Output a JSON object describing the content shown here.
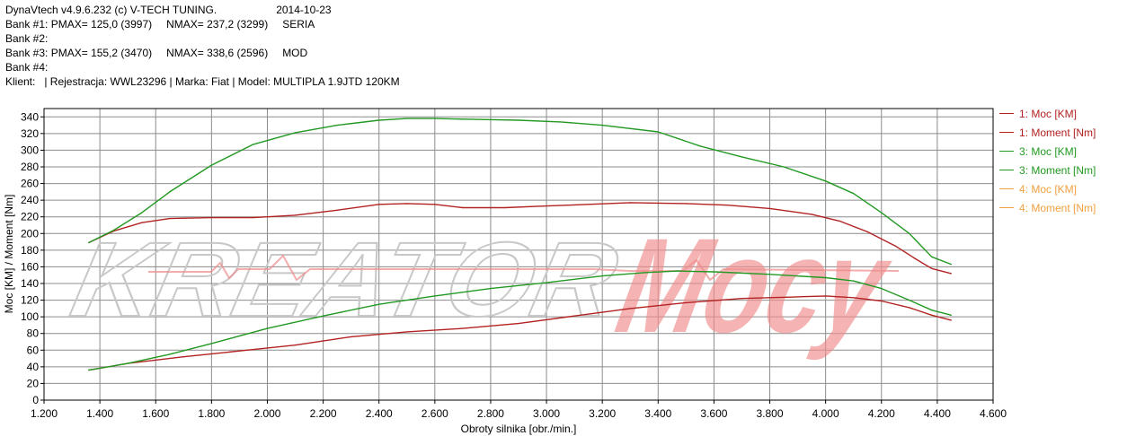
{
  "header": {
    "line1_app": "DynaVtech v4.9.6.232 (c) V-TECH TUNING.",
    "line1_date": "2014-10-23",
    "bank1_label": "Bank #1:",
    "bank1_pmax": "PMAX= 125,0 (3997)",
    "bank1_nmax": "NMAX= 237,2 (3299)",
    "bank1_name": "SERIA",
    "bank2_label": "Bank #2:",
    "bank3_label": "Bank #3:",
    "bank3_pmax": "PMAX= 155,2 (3470)",
    "bank3_nmax": "NMAX= 338,6 (2596)",
    "bank3_name": "MOD",
    "bank4_label": "Bank #4:",
    "client_line": "Klient:   | Rejestracja: WWL23296 | Marka: Fiat | Model: MULTIPLA 1.9JTD 120KM"
  },
  "watermark": {
    "word1": "KREATOR",
    "word2": "Mocy",
    "word1_color": "#c8c8c8",
    "word2_color": "#f08a8a"
  },
  "chart_data": {
    "type": "line",
    "xlabel": "Obroty silnika [obr./min.]",
    "ylabel": "Moc [KM] / Moment [Nm]",
    "xlim": [
      1200,
      4600
    ],
    "ylim": [
      0,
      350
    ],
    "x_ticks": [
      1200,
      1400,
      1600,
      1800,
      2000,
      2200,
      2400,
      2600,
      2800,
      3000,
      3200,
      3400,
      3600,
      3800,
      4000,
      4200,
      4400,
      4600
    ],
    "x_tick_labels": [
      "1.200",
      "1.400",
      "1.600",
      "1.800",
      "2.000",
      "2.200",
      "2.400",
      "2.600",
      "2.800",
      "3.000",
      "3.200",
      "3.400",
      "3.600",
      "3.800",
      "4.000",
      "4.200",
      "4.400",
      "4.600"
    ],
    "y_ticks": [
      0,
      20,
      40,
      60,
      80,
      100,
      120,
      140,
      160,
      180,
      200,
      220,
      240,
      260,
      280,
      300,
      320,
      340
    ],
    "y_tick_labels": [
      "0",
      "20",
      "40",
      "60",
      "80",
      "100",
      "120",
      "140",
      "160",
      "180",
      "200",
      "220",
      "240",
      "260",
      "280",
      "300",
      "320",
      "340"
    ],
    "grid": true,
    "legend_position": "right",
    "series": [
      {
        "name": "1: Moc [KM]",
        "color": "#b22222",
        "points": [
          [
            1360,
            36
          ],
          [
            1500,
            44
          ],
          [
            1700,
            52
          ],
          [
            1900,
            59
          ],
          [
            2100,
            66
          ],
          [
            2300,
            76
          ],
          [
            2500,
            82
          ],
          [
            2700,
            86
          ],
          [
            2900,
            92
          ],
          [
            3100,
            101
          ],
          [
            3300,
            110
          ],
          [
            3500,
            117
          ],
          [
            3700,
            122
          ],
          [
            3900,
            124
          ],
          [
            4000,
            125
          ],
          [
            4100,
            123
          ],
          [
            4200,
            119
          ],
          [
            4300,
            111
          ],
          [
            4380,
            102
          ],
          [
            4450,
            96
          ]
        ]
      },
      {
        "name": "1: Moment [Nm]",
        "color": "#b22222",
        "points": [
          [
            1360,
            189
          ],
          [
            1450,
            203
          ],
          [
            1550,
            213
          ],
          [
            1650,
            218
          ],
          [
            1800,
            219
          ],
          [
            1950,
            219
          ],
          [
            2100,
            222
          ],
          [
            2250,
            228
          ],
          [
            2400,
            235
          ],
          [
            2500,
            236
          ],
          [
            2600,
            235
          ],
          [
            2700,
            231
          ],
          [
            2850,
            231
          ],
          [
            3000,
            233
          ],
          [
            3150,
            235
          ],
          [
            3300,
            237
          ],
          [
            3500,
            236
          ],
          [
            3650,
            234
          ],
          [
            3800,
            230
          ],
          [
            3950,
            223
          ],
          [
            4050,
            215
          ],
          [
            4150,
            202
          ],
          [
            4250,
            185
          ],
          [
            4320,
            170
          ],
          [
            4380,
            158
          ],
          [
            4450,
            152
          ]
        ]
      },
      {
        "name": "3: Moc [KM]",
        "color": "#229922",
        "points": [
          [
            1360,
            36
          ],
          [
            1500,
            44
          ],
          [
            1650,
            55
          ],
          [
            1800,
            68
          ],
          [
            2000,
            86
          ],
          [
            2200,
            101
          ],
          [
            2400,
            115
          ],
          [
            2600,
            125
          ],
          [
            2800,
            134
          ],
          [
            3000,
            141
          ],
          [
            3200,
            149
          ],
          [
            3350,
            153
          ],
          [
            3470,
            155
          ],
          [
            3600,
            154
          ],
          [
            3800,
            151
          ],
          [
            4000,
            147
          ],
          [
            4100,
            143
          ],
          [
            4200,
            134
          ],
          [
            4300,
            120
          ],
          [
            4380,
            108
          ],
          [
            4450,
            102
          ]
        ]
      },
      {
        "name": "3: Moment [Nm]",
        "color": "#229922",
        "points": [
          [
            1360,
            189
          ],
          [
            1450,
            204
          ],
          [
            1550,
            225
          ],
          [
            1650,
            250
          ],
          [
            1800,
            282
          ],
          [
            1950,
            307
          ],
          [
            2100,
            321
          ],
          [
            2250,
            330
          ],
          [
            2400,
            336
          ],
          [
            2500,
            338
          ],
          [
            2600,
            338
          ],
          [
            2750,
            337
          ],
          [
            2900,
            336
          ],
          [
            3050,
            334
          ],
          [
            3200,
            330
          ],
          [
            3400,
            322
          ],
          [
            3550,
            305
          ],
          [
            3700,
            292
          ],
          [
            3850,
            280
          ],
          [
            4000,
            263
          ],
          [
            4100,
            248
          ],
          [
            4200,
            225
          ],
          [
            4300,
            200
          ],
          [
            4380,
            172
          ],
          [
            4450,
            163
          ]
        ]
      },
      {
        "name": "4: Moc [KM]",
        "color": "#f0a040",
        "points": []
      },
      {
        "name": "4: Moment [Nm]",
        "color": "#f0a040",
        "points": []
      }
    ]
  }
}
